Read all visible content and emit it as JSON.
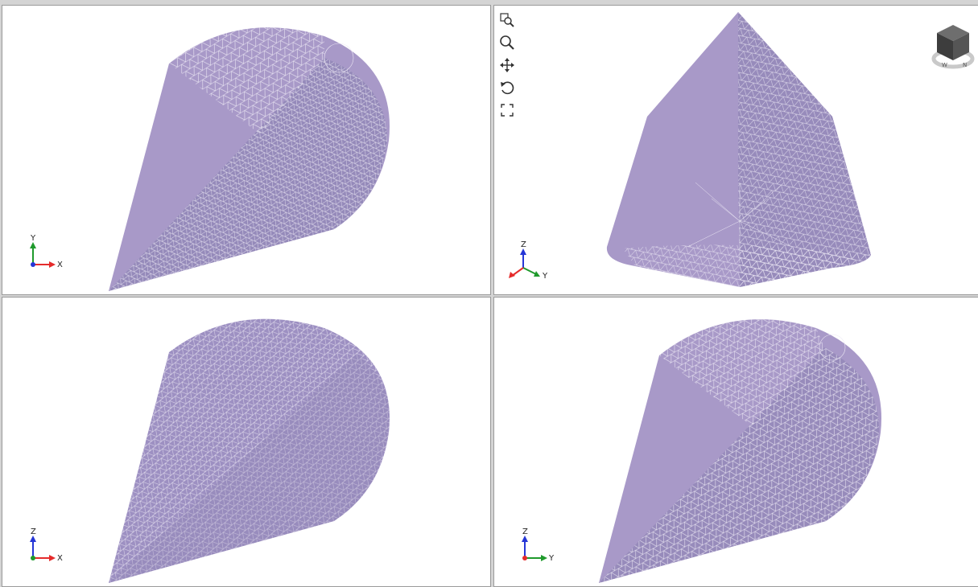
{
  "viewports": {
    "top_left": {
      "axes": {
        "vertical": "Y",
        "horizontal": "X"
      }
    },
    "top_right": {
      "axes": {
        "vertical": "Z",
        "horizontal": "Y"
      }
    },
    "bottom_left": {
      "axes": {
        "vertical": "Z",
        "horizontal": "X"
      }
    },
    "bottom_right": {
      "axes": {
        "vertical": "Z",
        "horizontal": "Y"
      }
    }
  },
  "toolbar": {
    "tools": [
      "zoom-window-icon",
      "zoom-icon",
      "pan-icon",
      "rotate-icon",
      "fit-all-icon"
    ]
  },
  "navcube": {
    "icon": "view-cube-icon"
  },
  "colors": {
    "mesh_fill": "#a899c8",
    "mesh_line": "#e7e2f1",
    "mesh_shadow": "#8f80ad",
    "axis_x": "#e52b2b",
    "axis_y": "#1f9a2c",
    "axis_z": "#2536d6"
  }
}
